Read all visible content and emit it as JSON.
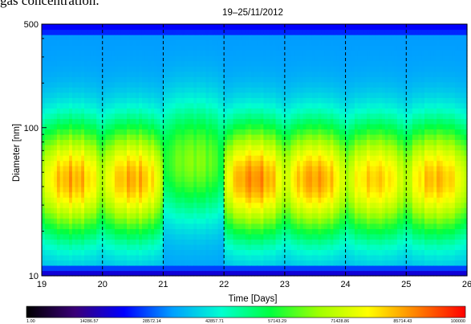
{
  "caption_fragment": "gas concentration.",
  "chart_data": {
    "type": "heatmap",
    "title": "19–25/11/2012",
    "xlabel": "Time [Days]",
    "ylabel": "Diameter [nm]",
    "xlim": [
      19,
      26
    ],
    "ylim": [
      10,
      500
    ],
    "yscale": "log",
    "x_ticks": [
      19,
      20,
      21,
      22,
      23,
      24,
      25,
      26
    ],
    "x_tick_labels": [
      "19",
      "20",
      "21",
      "22",
      "23",
      "24",
      "25",
      "26"
    ],
    "y_ticks": [
      10,
      100,
      500
    ],
    "y_tick_labels": [
      "10",
      "100",
      "500"
    ],
    "day_boundaries": [
      20,
      21,
      22,
      23,
      24,
      25
    ],
    "daily_peaks": [
      {
        "day": 19,
        "peak_diameter_nm": 45,
        "intensity": 0.9
      },
      {
        "day": 20,
        "peak_diameter_nm": 45,
        "intensity": 0.9
      },
      {
        "day": 21,
        "peak_diameter_nm": 60,
        "intensity": 0.55
      },
      {
        "day": 22,
        "peak_diameter_nm": 45,
        "intensity": 0.95
      },
      {
        "day": 23,
        "peak_diameter_nm": 45,
        "intensity": 0.92
      },
      {
        "day": 24,
        "peak_diameter_nm": 45,
        "intensity": 0.85
      },
      {
        "day": 25,
        "peak_diameter_nm": 45,
        "intensity": 0.88
      }
    ],
    "colorbar": {
      "min": 1.0,
      "max": 100000,
      "tick_labels": [
        "1.00",
        "14286.57",
        "28572.14",
        "42857.71",
        "57143.29",
        "71428.86",
        "85714.43",
        "100000"
      ],
      "colors": [
        "#000000",
        "#3a0078",
        "#0000ff",
        "#00a0ff",
        "#00ffd0",
        "#00ff40",
        "#a0ff00",
        "#ffff00",
        "#ff8000",
        "#ff0000"
      ]
    }
  }
}
